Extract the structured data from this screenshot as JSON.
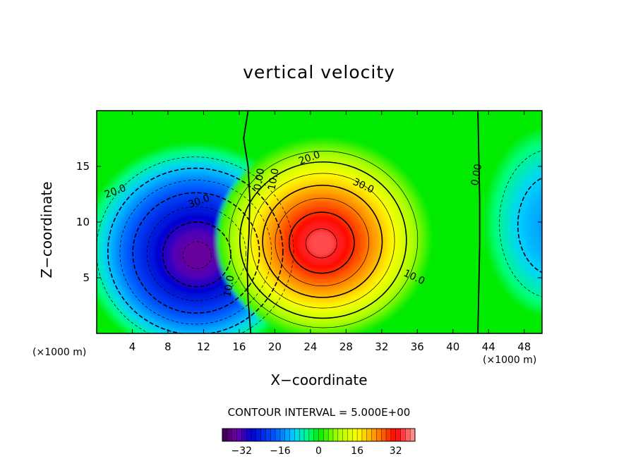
{
  "chart_data": {
    "type": "heatmap",
    "title": "vertical velocity",
    "xlabel": "X−coordinate",
    "ylabel": "Z−coordinate",
    "x_unit": "(×1000 m)",
    "z_unit": "(×1000 m)",
    "xlim": [
      0,
      50
    ],
    "ylim": [
      0,
      20
    ],
    "x_ticks": [
      4,
      8,
      12,
      16,
      20,
      24,
      28,
      32,
      36,
      40,
      44,
      48
    ],
    "y_ticks": [
      5,
      10,
      15
    ],
    "contour_interval_text": "CONTOUR INTERVAL = 5.000E+00",
    "contour_interval": 5,
    "colorbar": {
      "range": [
        -40,
        40
      ],
      "ticks": [
        "−32",
        "−16",
        "0",
        "16",
        "32"
      ],
      "tick_values": [
        -32,
        -16,
        0,
        16,
        32
      ]
    },
    "cells": [
      {
        "name": "downdraft",
        "x": 11,
        "z": 7.5,
        "peak": -37
      },
      {
        "name": "updraft",
        "x": 25.5,
        "z": 8.5,
        "peak": 38
      },
      {
        "name": "edge-downdraft",
        "x": 51,
        "z": 10,
        "peak": -14
      }
    ],
    "contour_labels": [
      {
        "text": "20.0",
        "x": 2.2,
        "z": 12.5
      },
      {
        "text": "30.0",
        "x": 11.6,
        "z": 11.6
      },
      {
        "text": "10.0",
        "x": 15.2,
        "z": 4.2
      },
      {
        "text": "0.00",
        "x": 18.6,
        "z": 13.8
      },
      {
        "text": "10.0",
        "x": 20.2,
        "z": 13.8
      },
      {
        "text": "20.0",
        "x": 24.0,
        "z": 15.5
      },
      {
        "text": "30.0",
        "x": 29.8,
        "z": 13.0
      },
      {
        "text": "10.0",
        "x": 35.5,
        "z": 4.8
      },
      {
        "text": "0.00",
        "x": 43.0,
        "z": 14.2
      }
    ]
  }
}
